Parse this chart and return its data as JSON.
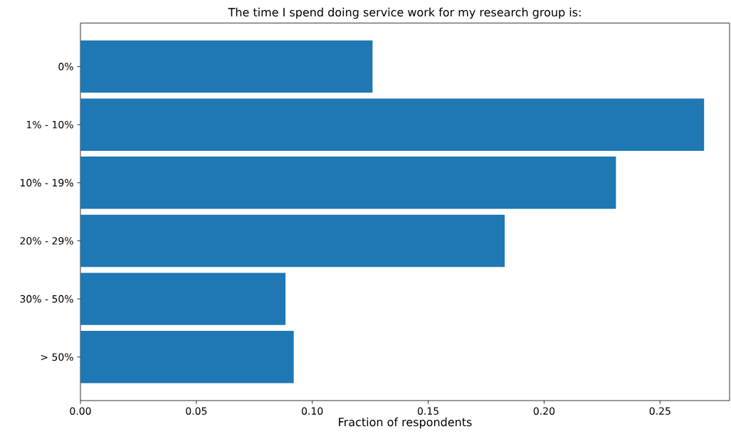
{
  "chart_data": {
    "type": "bar",
    "orientation": "horizontal",
    "title": "The time I spend doing service work for my research group is:",
    "xlabel": "Fraction of respondents",
    "categories": [
      "0%",
      "1% - 10%",
      "10% - 19%",
      "20% - 29%",
      "30% - 50%",
      "> 50%"
    ],
    "values": [
      0.126,
      0.269,
      0.231,
      0.183,
      0.0885,
      0.092
    ],
    "color": "#1f77b4",
    "xlim": [
      0,
      0.28
    ],
    "xticks": [
      {
        "value": 0,
        "label": "0.00"
      },
      {
        "value": 0.05,
        "label": "0.05"
      },
      {
        "value": 0.1,
        "label": "0.10"
      },
      {
        "value": 0.15,
        "label": "0.15"
      },
      {
        "value": 0.2,
        "label": "0.20"
      },
      {
        "value": 0.25,
        "label": "0.25"
      }
    ],
    "grid": false
  }
}
